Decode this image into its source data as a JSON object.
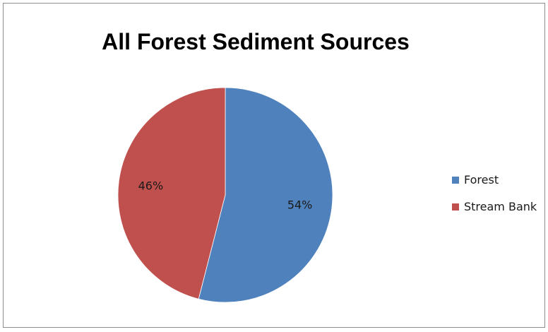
{
  "chart_data": {
    "type": "pie",
    "title": "All Forest Sediment Sources",
    "categories": [
      "Forest",
      "Stream Bank"
    ],
    "values": [
      54,
      46
    ],
    "data_labels": [
      "54%",
      "46%"
    ],
    "colors": [
      "#4f81bd",
      "#c0504d"
    ],
    "legend": {
      "placement": "right",
      "entries": [
        "Forest",
        "Stream Bank"
      ]
    }
  }
}
